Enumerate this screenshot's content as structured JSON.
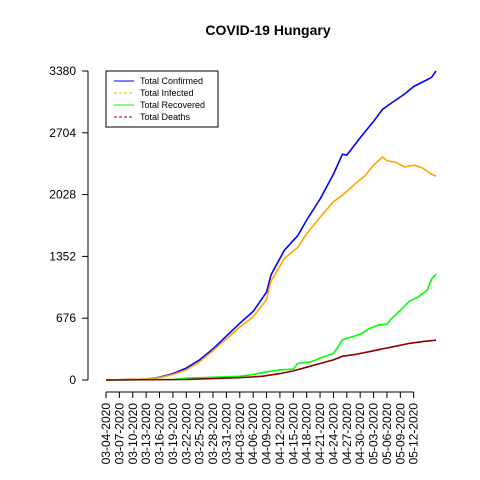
{
  "chart_data": {
    "type": "line",
    "title": "COVID-19 Hungary",
    "xlabel": "",
    "ylabel": "",
    "ylim": [
      0,
      3380
    ],
    "yticks": [
      0,
      676,
      1352,
      2028,
      2704,
      3380
    ],
    "xticks": [
      "03-04-2020",
      "03-07-2020",
      "03-10-2020",
      "03-13-2020",
      "03-16-2020",
      "03-19-2020",
      "03-22-2020",
      "03-25-2020",
      "03-28-2020",
      "03-31-2020",
      "04-03-2020",
      "04-06-2020",
      "04-09-2020",
      "04-12-2020",
      "04-15-2020",
      "04-18-2020",
      "04-21-2020",
      "04-24-2020",
      "04-27-2020",
      "04-30-2020",
      "05-03-2020",
      "05-06-2020",
      "05-09-2020",
      "05-12-2020"
    ],
    "grid": false,
    "legend_position": "top-left",
    "x_start": "03-04-2020",
    "series": [
      {
        "name": "Total Confirmed",
        "color": "#0000ff",
        "dash": "solid",
        "points": [
          [
            0,
            0
          ],
          [
            9,
            10
          ],
          [
            12,
            30
          ],
          [
            15,
            70
          ],
          [
            18,
            130
          ],
          [
            21,
            220
          ],
          [
            24,
            340
          ],
          [
            27,
            480
          ],
          [
            30,
            620
          ],
          [
            33,
            750
          ],
          [
            36,
            960
          ],
          [
            37,
            1150
          ],
          [
            40,
            1420
          ],
          [
            43,
            1580
          ],
          [
            45,
            1750
          ],
          [
            48,
            1980
          ],
          [
            51,
            2250
          ],
          [
            53,
            2470
          ],
          [
            54,
            2460
          ],
          [
            57,
            2650
          ],
          [
            60,
            2830
          ],
          [
            62,
            2960
          ],
          [
            64,
            3030
          ],
          [
            67,
            3130
          ],
          [
            69,
            3210
          ],
          [
            71,
            3260
          ],
          [
            73,
            3310
          ],
          [
            74,
            3380
          ]
        ]
      },
      {
        "name": "Total Infected",
        "color": "#ffa500",
        "dash": "dashed",
        "points": [
          [
            0,
            0
          ],
          [
            9,
            10
          ],
          [
            12,
            25
          ],
          [
            15,
            60
          ],
          [
            18,
            110
          ],
          [
            21,
            200
          ],
          [
            24,
            320
          ],
          [
            27,
            450
          ],
          [
            30,
            580
          ],
          [
            33,
            690
          ],
          [
            36,
            880
          ],
          [
            37,
            1080
          ],
          [
            40,
            1330
          ],
          [
            43,
            1450
          ],
          [
            45,
            1600
          ],
          [
            48,
            1780
          ],
          [
            51,
            1950
          ],
          [
            53,
            2020
          ],
          [
            56,
            2150
          ],
          [
            58,
            2230
          ],
          [
            60,
            2350
          ],
          [
            62,
            2440
          ],
          [
            63,
            2400
          ],
          [
            65,
            2380
          ],
          [
            67,
            2330
          ],
          [
            69,
            2350
          ],
          [
            71,
            2320
          ],
          [
            73,
            2250
          ],
          [
            74,
            2230
          ]
        ]
      },
      {
        "name": "Total Recovered",
        "color": "#00ff00",
        "dash": "solid",
        "points": [
          [
            0,
            0
          ],
          [
            15,
            5
          ],
          [
            18,
            20
          ],
          [
            24,
            30
          ],
          [
            27,
            35
          ],
          [
            30,
            40
          ],
          [
            33,
            60
          ],
          [
            36,
            90
          ],
          [
            39,
            110
          ],
          [
            42,
            120
          ],
          [
            43,
            180
          ],
          [
            46,
            200
          ],
          [
            48,
            240
          ],
          [
            51,
            290
          ],
          [
            52,
            360
          ],
          [
            53,
            440
          ],
          [
            55,
            470
          ],
          [
            57,
            500
          ],
          [
            59,
            560
          ],
          [
            61,
            600
          ],
          [
            63,
            610
          ],
          [
            64,
            670
          ],
          [
            66,
            760
          ],
          [
            68,
            860
          ],
          [
            70,
            910
          ],
          [
            72,
            980
          ],
          [
            73,
            1100
          ],
          [
            74,
            1160
          ]
        ]
      },
      {
        "name": "Total Deaths",
        "color": "#8b0000",
        "dash": "dashed",
        "points": [
          [
            0,
            0
          ],
          [
            18,
            5
          ],
          [
            24,
            15
          ],
          [
            30,
            25
          ],
          [
            35,
            40
          ],
          [
            39,
            70
          ],
          [
            42,
            100
          ],
          [
            45,
            140
          ],
          [
            48,
            180
          ],
          [
            51,
            220
          ],
          [
            53,
            260
          ],
          [
            56,
            280
          ],
          [
            59,
            310
          ],
          [
            62,
            340
          ],
          [
            65,
            370
          ],
          [
            68,
            400
          ],
          [
            71,
            420
          ],
          [
            74,
            435
          ]
        ]
      }
    ]
  }
}
